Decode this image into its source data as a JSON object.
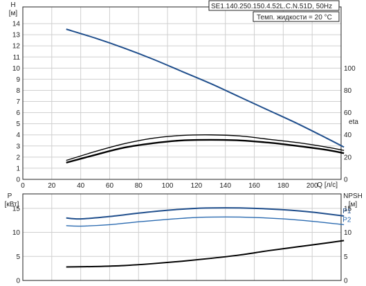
{
  "chart_data": [
    {
      "type": "line",
      "title": "SE1.140.250.150.4.52L.C.N.51D, 50Hz",
      "annotation": "Темп. жидкости = 20 °C",
      "xlabel": "Q [л/с]",
      "ylabel_symbol": "H",
      "ylabel_unit": "[м]",
      "y2label": "eta",
      "xlim": [
        0,
        220
      ],
      "ylim": [
        0,
        15.5
      ],
      "y2lim": [
        0,
        155
      ],
      "grid": true,
      "x_ticks": [
        0,
        20,
        40,
        60,
        80,
        100,
        120,
        140,
        160,
        180,
        200
      ],
      "y_ticks": [
        0,
        1,
        2,
        3,
        4,
        5,
        6,
        7,
        8,
        9,
        10,
        11,
        12,
        13,
        14
      ],
      "y2_ticks": [
        0,
        20,
        40,
        60,
        80,
        100
      ],
      "series": [
        {
          "name": "",
          "axis": "left",
          "color": "#1f4e8c",
          "x": [
            30,
            50,
            70,
            90,
            110,
            130,
            150,
            170,
            190,
            210,
            222
          ],
          "y": [
            13.5,
            12.7,
            11.8,
            10.8,
            9.7,
            8.6,
            7.4,
            6.2,
            5.0,
            3.7,
            2.9
          ]
        },
        {
          "name": "",
          "axis": "right",
          "color": "#000000",
          "x": [
            30,
            50,
            70,
            90,
            110,
            130,
            150,
            170,
            190,
            210,
            222
          ],
          "y": [
            17,
            25,
            32,
            37,
            39.5,
            40,
            39,
            36,
            33,
            29,
            26
          ]
        },
        {
          "name": "",
          "axis": "right",
          "color": "#000000",
          "x": [
            30,
            50,
            70,
            90,
            110,
            130,
            150,
            170,
            190,
            210,
            222
          ],
          "y": [
            15,
            22,
            28.5,
            32.5,
            35,
            35.5,
            35,
            33,
            30,
            26.5,
            23.5
          ]
        }
      ]
    },
    {
      "type": "line",
      "ylabel_symbol": "P",
      "ylabel_unit": "[кВт]",
      "y2label_symbol": "NPSH",
      "y2label_unit": "[м]",
      "xlim": [
        0,
        220
      ],
      "ylim": [
        0,
        18
      ],
      "y2lim": [
        0,
        18
      ],
      "grid": true,
      "y_ticks": [
        0,
        5,
        10,
        15
      ],
      "y2_ticks": [
        0,
        5,
        10,
        15
      ],
      "series": [
        {
          "name": "P1",
          "axis": "left",
          "color": "#1f4e8c",
          "x": [
            30,
            40,
            60,
            80,
            100,
            120,
            140,
            160,
            180,
            200,
            222
          ],
          "y": [
            13.0,
            12.8,
            13.3,
            14.0,
            14.6,
            15.0,
            15.1,
            15.0,
            14.7,
            14.2,
            13.4
          ]
        },
        {
          "name": "P2",
          "axis": "left",
          "color": "#2a6ab0",
          "x": [
            30,
            40,
            60,
            80,
            100,
            120,
            140,
            160,
            180,
            200,
            222
          ],
          "y": [
            11.4,
            11.3,
            11.6,
            12.2,
            12.7,
            13.1,
            13.2,
            13.1,
            12.8,
            12.3,
            11.6
          ]
        },
        {
          "name": "",
          "axis": "right",
          "color": "#000000",
          "x": [
            30,
            50,
            70,
            90,
            110,
            130,
            150,
            170,
            190,
            210,
            222
          ],
          "y": [
            2.8,
            2.9,
            3.1,
            3.5,
            4.0,
            4.6,
            5.3,
            6.2,
            7.0,
            7.8,
            8.3
          ]
        }
      ]
    }
  ]
}
